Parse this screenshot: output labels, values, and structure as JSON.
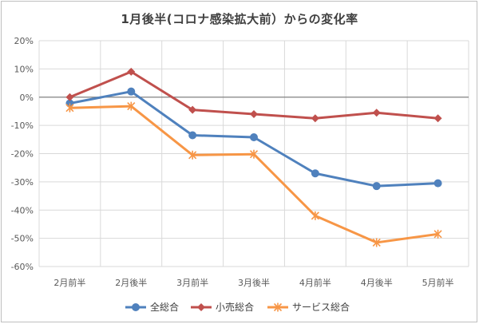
{
  "chart_data": {
    "type": "line",
    "title": "1月後半(コロナ感染拡大前）からの変化率",
    "categories": [
      "2月前半",
      "2月後半",
      "3月前半",
      "3月後半",
      "4月前半",
      "4月後半",
      "5月前半"
    ],
    "yticks": [
      "20%",
      "10%",
      "0%",
      "-10%",
      "-20%",
      "-30%",
      "-40%",
      "-50%",
      "-60%"
    ],
    "ylim": [
      -60,
      20
    ],
    "ytick_step": 10,
    "grid": true,
    "legend_position": "bottom",
    "series": [
      {
        "name": "全総合",
        "color": "#4f81bd",
        "marker": "circle",
        "values": [
          -2.2,
          2,
          -13.5,
          -14.2,
          -27,
          -31.5,
          -30.5
        ]
      },
      {
        "name": "小売総合",
        "color": "#c0504d",
        "marker": "diamond",
        "values": [
          0,
          9,
          -4.5,
          -6,
          -7.5,
          -5.5,
          -7.5
        ]
      },
      {
        "name": "サービス総合",
        "color": "#f79646",
        "marker": "star",
        "values": [
          -3.8,
          -3.2,
          -20.5,
          -20.2,
          -42,
          -51.5,
          -48.5
        ]
      }
    ]
  }
}
